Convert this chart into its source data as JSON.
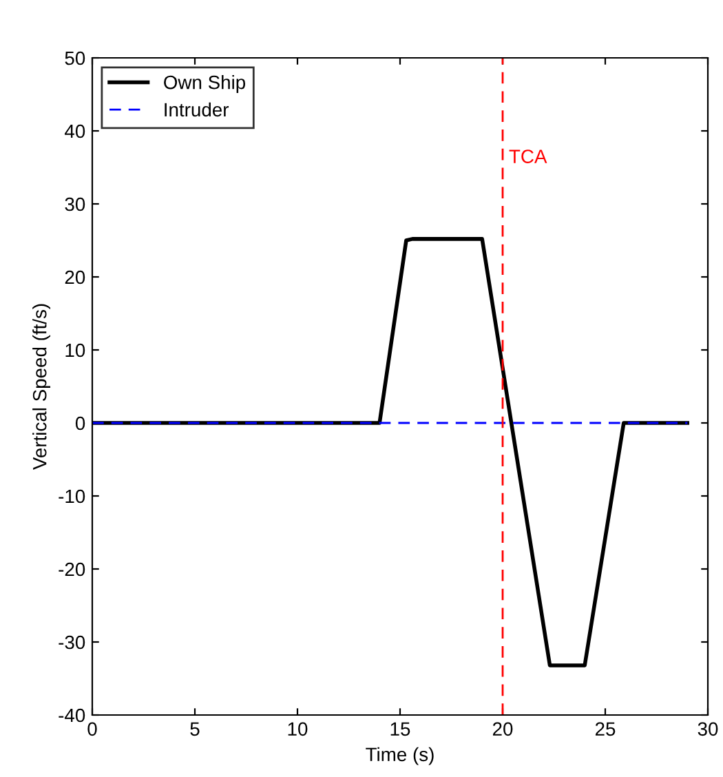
{
  "chart_data": {
    "type": "line",
    "xlabel": "Time (s)",
    "ylabel": "Vertical Speed (ft/s)",
    "xlim": [
      0,
      30
    ],
    "xticks": [
      0,
      5,
      10,
      15,
      20,
      25,
      30
    ],
    "ylim": [
      -40,
      50
    ],
    "yticks": [
      -40,
      -30,
      -20,
      -10,
      0,
      10,
      20,
      30,
      40,
      50
    ],
    "grid": false,
    "legend": "top left",
    "series": [
      {
        "name": "Own Ship",
        "color": "#000000",
        "line_style": "solid",
        "x": [
          0,
          14,
          15.3,
          15.6,
          19,
          22.3,
          24,
          25.9,
          29
        ],
        "values": [
          0,
          0,
          25,
          25.2,
          25.2,
          -33.2,
          -33.2,
          0,
          0
        ]
      },
      {
        "name": "Intruder",
        "color": "#0000ff",
        "line_style": "dashed",
        "x": [
          0,
          29
        ],
        "values": [
          0,
          0
        ]
      }
    ],
    "ref_lines": [
      {
        "axis": "x",
        "value": 20,
        "label": "TCA",
        "color": "#ff0000",
        "line_style": "dashed"
      }
    ]
  }
}
